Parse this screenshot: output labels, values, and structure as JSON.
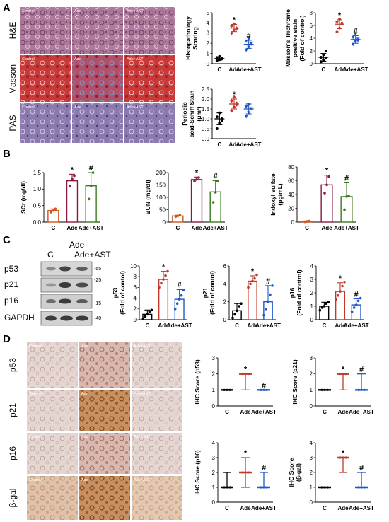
{
  "panels": {
    "A": {
      "label": "A",
      "row_labels": [
        "H&E",
        "Masson",
        "PAS"
      ],
      "image_labels": [
        "Control",
        "Ade",
        "Ade+AST"
      ]
    },
    "B": {
      "label": "B"
    },
    "C": {
      "label": "C",
      "lane_labels": [
        "C",
        "Ade",
        "Ade+AST"
      ],
      "proteins": [
        "p53",
        "p21",
        "p16",
        "GAPDH"
      ],
      "mw_markers": [
        "-55",
        "-25",
        "-15",
        "-40"
      ]
    },
    "D": {
      "label": "D",
      "row_labels": [
        "p53",
        "p21",
        "p16",
        "β-gal"
      ],
      "image_labels": [
        "Control",
        "Ade",
        "Ade+AST"
      ]
    }
  },
  "colors": {
    "control": "#000000",
    "ade": "#c0392b",
    "ade_ast": "#2157c9",
    "bun_ade": "#8b1a3c",
    "bun_ast": "#3e7a1f",
    "bun_ctrl": "#cc5522"
  },
  "chart_data": [
    {
      "id": "histo",
      "type": "scatter",
      "panel": "A",
      "ylabel": "Histopathology Scoring",
      "categories": [
        "C",
        "Ade",
        "Ade+AST"
      ],
      "ylim": [
        0,
        5
      ],
      "yticks": [
        0,
        1,
        2,
        3,
        4,
        5
      ],
      "points": [
        [
          0.3,
          0.4,
          0.5,
          0.6,
          0.7,
          0.5
        ],
        [
          3.0,
          3.3,
          3.5,
          3.7,
          3.9,
          3.4
        ],
        [
          1.3,
          1.6,
          1.9,
          2.2,
          2.4,
          2.0
        ]
      ],
      "means": [
        0.5,
        3.5,
        1.9
      ],
      "sd": [
        0.15,
        0.35,
        0.4
      ],
      "sig": [
        "",
        "*",
        "#"
      ]
    },
    {
      "id": "masson",
      "type": "scatter",
      "panel": "A",
      "ylabel": "Masson's Trichrome positive stain (Fold of control)",
      "categories": [
        "C",
        "Ade",
        "Ade+AST"
      ],
      "ylim": [
        0,
        8
      ],
      "yticks": [
        0,
        2,
        4,
        6,
        8
      ],
      "points": [
        [
          0.3,
          0.6,
          0.9,
          1.0,
          1.4,
          2.0
        ],
        [
          5.0,
          5.6,
          6.2,
          6.6,
          7.0,
          6.4
        ],
        [
          3.0,
          3.4,
          3.8,
          4.1,
          4.6,
          3.6
        ]
      ],
      "means": [
        1.0,
        6.2,
        3.8
      ],
      "sd": [
        0.6,
        0.7,
        0.6
      ],
      "sig": [
        "",
        "*",
        "#"
      ]
    },
    {
      "id": "pas",
      "type": "scatter",
      "panel": "A",
      "ylabel": "Periodic acid-Schiff Stain (μm²)",
      "categories": [
        "C",
        "Ade",
        "Ade+AST"
      ],
      "ylim": [
        0,
        2.5
      ],
      "yticks": [
        0.0,
        0.5,
        1.0,
        1.5,
        2.0,
        2.5
      ],
      "points": [
        [
          0.5,
          0.8,
          1.0,
          1.1,
          1.3,
          0.9
        ],
        [
          1.4,
          1.6,
          1.7,
          1.9,
          2.1,
          1.8
        ],
        [
          1.1,
          1.3,
          1.5,
          1.6,
          1.7,
          1.5
        ]
      ],
      "means": [
        1.0,
        1.75,
        1.5
      ],
      "sd": [
        0.3,
        0.25,
        0.25
      ],
      "sig": [
        "",
        "*",
        ""
      ]
    },
    {
      "id": "scr",
      "type": "bar",
      "panel": "B",
      "ylabel": "SCr (mg/dl)",
      "categories": [
        "C",
        "Ade",
        "Ade+AST"
      ],
      "ylim": [
        0,
        1.5
      ],
      "yticks": [
        0.0,
        0.5,
        1.0,
        1.5
      ],
      "values": [
        0.35,
        1.25,
        1.1
      ],
      "sd": [
        0.05,
        0.2,
        0.4
      ],
      "points": [
        [
          0.3,
          0.35,
          0.4
        ],
        [
          1.1,
          1.3,
          1.4
        ],
        [
          0.7,
          1.1,
          1.5
        ]
      ],
      "sig": [
        "",
        "*",
        "#"
      ]
    },
    {
      "id": "bun",
      "type": "bar",
      "panel": "B",
      "ylabel": "BUN (mg/dl)",
      "categories": [
        "C",
        "Ade",
        "Ade+AST"
      ],
      "ylim": [
        0,
        200
      ],
      "yticks": [
        0,
        50,
        100,
        150,
        200
      ],
      "values": [
        25,
        172,
        122
      ],
      "sd": [
        3,
        10,
        45
      ],
      "points": [
        [
          22,
          25,
          28
        ],
        [
          165,
          172,
          180
        ],
        [
          80,
          120,
          165
        ]
      ],
      "sig": [
        "",
        "*",
        "#"
      ]
    },
    {
      "id": "indoxyl",
      "type": "bar",
      "panel": "B",
      "ylabel": "Indoxyl sulfate (μg/mL)",
      "categories": [
        "C",
        "Ade",
        "Ade+AST"
      ],
      "ylim": [
        0,
        80
      ],
      "yticks": [
        0,
        20,
        40,
        60,
        80
      ],
      "values": [
        1,
        54,
        37
      ],
      "sd": [
        0.5,
        14,
        20
      ],
      "points": [
        [
          0.5,
          1,
          1.5
        ],
        [
          42,
          54,
          66
        ],
        [
          18,
          37,
          38
        ]
      ],
      "sig": [
        "",
        "*",
        "#"
      ]
    },
    {
      "id": "p53wb",
      "type": "bar",
      "panel": "C",
      "ylabel": "p53 (Fold of contol)",
      "categories": [
        "C",
        "Ade",
        "Ade+AST"
      ],
      "ylim": [
        0,
        10
      ],
      "yticks": [
        0,
        2,
        4,
        6,
        8,
        10
      ],
      "values": [
        1,
        7.5,
        3.8
      ],
      "sd": [
        0.8,
        1.5,
        1.8
      ],
      "points": [
        [
          0.2,
          0.6,
          1.0,
          1.5,
          1.8
        ],
        [
          6.0,
          6.8,
          7.5,
          8.2,
          9.0
        ],
        [
          2.0,
          3.0,
          3.8,
          4.5,
          5.5
        ]
      ],
      "sig": [
        "",
        "*",
        "#"
      ]
    },
    {
      "id": "p21wb",
      "type": "bar",
      "panel": "C",
      "ylabel": "p21 (Fold of contol)",
      "categories": [
        "C",
        "Ade",
        "Ade+AST"
      ],
      "ylim": [
        0,
        6
      ],
      "yticks": [
        0,
        2,
        4,
        6
      ],
      "values": [
        1,
        4.3,
        2.0
      ],
      "sd": [
        0.8,
        0.6,
        1.8
      ],
      "points": [
        [
          0.2,
          0.6,
          1.0,
          1.5,
          1.8
        ],
        [
          3.6,
          4.0,
          4.3,
          4.6,
          5.0
        ],
        [
          0.5,
          1.2,
          2.0,
          2.8,
          3.8
        ]
      ],
      "sig": [
        "",
        "*",
        "#"
      ]
    },
    {
      "id": "p16wb",
      "type": "bar",
      "panel": "C",
      "ylabel": "p16 (Fold of control)",
      "categories": [
        "C",
        "Ade",
        "Ade+AST"
      ],
      "ylim": [
        0,
        4
      ],
      "yticks": [
        0,
        1,
        2,
        3,
        4
      ],
      "values": [
        1.0,
        2.1,
        1.1
      ],
      "sd": [
        0.3,
        0.65,
        0.45
      ],
      "points": [
        [
          0.7,
          0.9,
          1.0,
          1.2,
          1.3
        ],
        [
          1.5,
          1.8,
          2.1,
          2.5,
          2.8
        ],
        [
          0.6,
          0.9,
          1.1,
          1.4,
          1.6
        ]
      ],
      "sig": [
        "",
        "*",
        "#"
      ]
    },
    {
      "id": "ihc_p53",
      "type": "scatter",
      "panel": "D",
      "ylabel": "IHC Score (p53)",
      "categories": [
        "C",
        "Ade",
        "Ade+AST"
      ],
      "ylim": [
        0,
        3
      ],
      "yticks": [
        0,
        1,
        2,
        3
      ],
      "medians": [
        1,
        2,
        1
      ],
      "ranges": [
        [
          1,
          1
        ],
        [
          1,
          2
        ],
        [
          1,
          1
        ]
      ],
      "sig": [
        "",
        "*",
        "#"
      ]
    },
    {
      "id": "ihc_p21",
      "type": "scatter",
      "panel": "D",
      "ylabel": "IHC Score (p21)",
      "categories": [
        "C",
        "Ade",
        "Ade+AST"
      ],
      "ylim": [
        0,
        3
      ],
      "yticks": [
        0,
        1,
        2,
        3
      ],
      "medians": [
        1,
        2,
        1
      ],
      "ranges": [
        [
          1,
          1
        ],
        [
          1,
          2
        ],
        [
          1,
          2
        ]
      ],
      "sig": [
        "",
        "*",
        "#"
      ]
    },
    {
      "id": "ihc_p16",
      "type": "scatter",
      "panel": "D",
      "ylabel": "IHC Score (p16)",
      "categories": [
        "C",
        "Ade",
        "Ade+AST"
      ],
      "ylim": [
        0,
        4
      ],
      "yticks": [
        0,
        1,
        2,
        3,
        4
      ],
      "medians": [
        1,
        2,
        1
      ],
      "ranges": [
        [
          1,
          2
        ],
        [
          1,
          3
        ],
        [
          1,
          2
        ]
      ],
      "sig": [
        "",
        "*",
        "#"
      ]
    },
    {
      "id": "ihc_bgal",
      "type": "scatter",
      "panel": "D",
      "ylabel": "IHC Score (β-gal)",
      "categories": [
        "C",
        "Ade",
        "Ade+AST"
      ],
      "ylim": [
        0,
        4
      ],
      "yticks": [
        0,
        1,
        2,
        3,
        4
      ],
      "medians": [
        1,
        3,
        1
      ],
      "ranges": [
        [
          1,
          1
        ],
        [
          2,
          3
        ],
        [
          1,
          2
        ]
      ],
      "sig": [
        "",
        "*",
        "#"
      ]
    }
  ]
}
